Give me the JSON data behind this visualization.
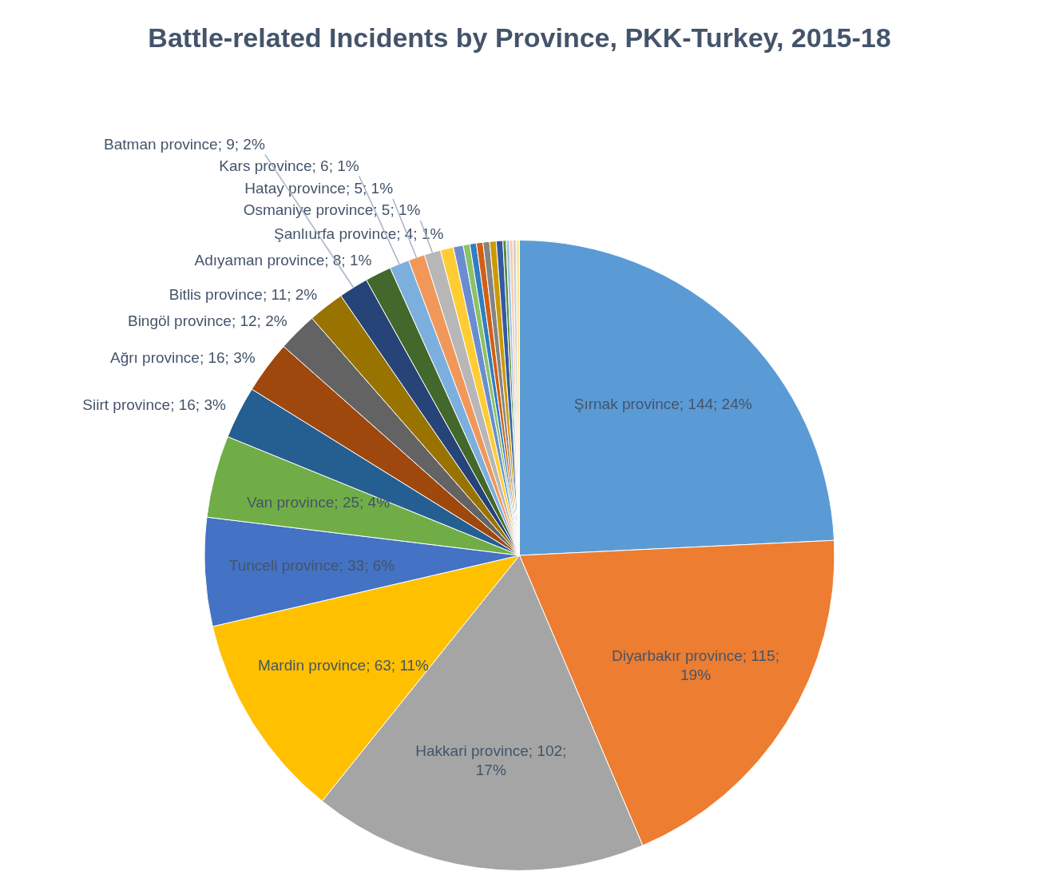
{
  "chart_data": {
    "type": "pie",
    "title": "Battle-related Incidents by Province, PKK-Turkey, 2015-18",
    "categories": [
      "Şırnak province",
      "Diyarbakır province",
      "Hakkari province",
      "Mardin province",
      "Tunceli province",
      "Van province",
      "Siirt province",
      "Ağrı province",
      "Bingöl province",
      "Bitlis province",
      "Batman province",
      "Adıyaman province",
      "Kars province",
      "Hatay province",
      "Osmaniye province",
      "Şanlıurfa province",
      null,
      null,
      null,
      null,
      null,
      null,
      null,
      null,
      null,
      null,
      null,
      null
    ],
    "values": [
      144,
      115,
      102,
      63,
      33,
      25,
      16,
      16,
      12,
      11,
      9,
      8,
      6,
      5,
      5,
      4,
      3,
      2,
      2,
      2,
      2,
      2,
      2,
      1,
      1,
      1,
      1,
      1
    ],
    "value_labels": [
      "144; 24%",
      "115; 19%",
      "102; 17%",
      "63; 11%",
      "33; 6%",
      "25; 4%",
      "16; 3%",
      "16; 3%",
      "12; 2%",
      "11; 2%",
      "9; 2%",
      "8; 1%",
      "6; 1%",
      "5; 1%",
      "5; 1%",
      "4; 1%",
      null,
      null,
      null,
      null,
      null,
      null,
      null,
      null,
      null,
      null,
      null,
      null
    ],
    "colors": [
      "#5b9bd5",
      "#ed7d31",
      "#a5a5a5",
      "#ffc000",
      "#4472c4",
      "#70ad47",
      "#255e91",
      "#9e480e",
      "#636363",
      "#997300",
      "#264478",
      "#43682b",
      "#7cafdd",
      "#f1975a",
      "#b7b7b7",
      "#ffcd33",
      "#698ed0",
      "#8cc168",
      "#327dc2",
      "#d26012",
      "#848484",
      "#cc9a00",
      "#335aa1",
      "#5a8a39",
      "#9dc3e6",
      "#f8cbad",
      "#d0d0d0",
      "#ffe699"
    ]
  }
}
